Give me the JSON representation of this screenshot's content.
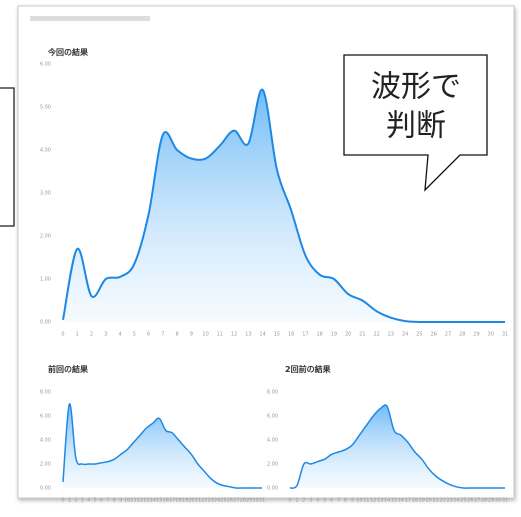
{
  "chart_data": [
    {
      "type": "area",
      "title": "今回の結果",
      "x": [
        0,
        1,
        2,
        3,
        4,
        5,
        6,
        7,
        8,
        9,
        10,
        11,
        12,
        13,
        14,
        15,
        16,
        17,
        18,
        19,
        20,
        21,
        22,
        23,
        24,
        25,
        26,
        27,
        28,
        29,
        30,
        31
      ],
      "values": [
        0.05,
        1.7,
        0.6,
        1.0,
        1.05,
        1.35,
        2.5,
        4.35,
        4.0,
        3.8,
        3.8,
        4.1,
        4.45,
        4.15,
        5.4,
        3.55,
        2.6,
        1.55,
        1.1,
        1.0,
        0.65,
        0.5,
        0.25,
        0.1,
        0.02,
        0,
        0,
        0,
        0,
        0,
        0,
        0
      ],
      "color": "#1e88e5",
      "xlim": [
        0,
        31
      ],
      "ylim": [
        0,
        6
      ],
      "yticks": [
        {
          "value": 0,
          "label": "0.00"
        },
        {
          "value": 1,
          "label": "1.00"
        },
        {
          "value": 2,
          "label": "2.00"
        },
        {
          "value": 3,
          "label": "3.00"
        },
        {
          "value": 4,
          "label": "4.00"
        },
        {
          "value": 5,
          "label": "5.00"
        },
        {
          "value": 6,
          "label": "6.00"
        }
      ],
      "grid": false
    },
    {
      "type": "area",
      "title": "前回の結果",
      "x": [
        0,
        1,
        2,
        3,
        4,
        5,
        6,
        7,
        8,
        9,
        10,
        11,
        12,
        13,
        14,
        15,
        16,
        17,
        18,
        19,
        20,
        21,
        22,
        23,
        24,
        25,
        26,
        27,
        28,
        29,
        30,
        31
      ],
      "values": [
        0.5,
        7.0,
        2.5,
        2.0,
        2.0,
        2.0,
        2.1,
        2.2,
        2.4,
        2.8,
        3.2,
        3.8,
        4.4,
        5.0,
        5.4,
        5.8,
        4.8,
        4.6,
        4.0,
        3.4,
        2.8,
        2.0,
        1.4,
        0.8,
        0.4,
        0.2,
        0.1,
        0,
        0,
        0,
        0,
        0
      ],
      "color": "#1e88e5",
      "xlim": [
        0,
        31
      ],
      "ylim": [
        0,
        8
      ],
      "yticks": [
        {
          "value": 0,
          "label": "0.00"
        },
        {
          "value": 2,
          "label": "2.00"
        },
        {
          "value": 4,
          "label": "4.00"
        },
        {
          "value": 6,
          "label": "6.00"
        },
        {
          "value": 8,
          "label": "8.00"
        }
      ],
      "grid": false
    },
    {
      "type": "area",
      "title": "2回前の結果",
      "x": [
        0,
        1,
        2,
        3,
        4,
        5,
        6,
        7,
        8,
        9,
        10,
        11,
        12,
        13,
        14,
        15,
        16,
        17,
        18,
        19,
        20,
        21,
        22,
        23,
        24,
        25,
        26,
        27,
        28,
        29,
        30,
        31
      ],
      "values": [
        0,
        0.2,
        2.0,
        2.0,
        2.2,
        2.4,
        2.8,
        3.0,
        3.2,
        3.6,
        4.4,
        5.2,
        6.0,
        6.6,
        6.8,
        4.8,
        4.4,
        3.8,
        3.0,
        2.4,
        1.6,
        1.0,
        0.6,
        0.3,
        0.1,
        0,
        0,
        0,
        0,
        0,
        0,
        0
      ],
      "color": "#1e88e5",
      "xlim": [
        0,
        31
      ],
      "ylim": [
        0,
        8
      ],
      "yticks": [
        {
          "value": 0,
          "label": "0.00"
        },
        {
          "value": 2,
          "label": "2.00"
        },
        {
          "value": 4,
          "label": "4.00"
        },
        {
          "value": 6,
          "label": "6.00"
        },
        {
          "value": 8,
          "label": "8.00"
        }
      ],
      "grid": false
    }
  ],
  "callout": {
    "lines": [
      "波形で",
      "判断"
    ]
  }
}
